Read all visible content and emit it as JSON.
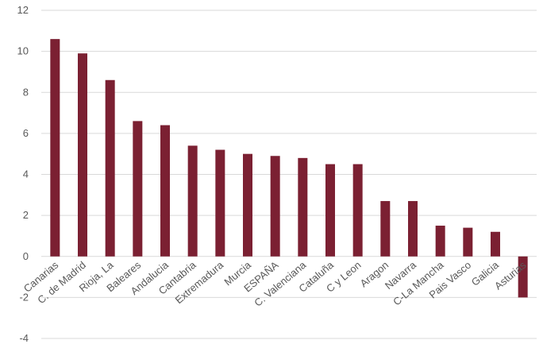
{
  "chart_data": {
    "type": "bar",
    "title": "",
    "xlabel": "",
    "ylabel": "",
    "ylim": [
      -4,
      12
    ],
    "yticks": [
      12,
      10,
      8,
      6,
      4,
      2,
      0,
      -2,
      -4
    ],
    "ytick_labels": [
      "12",
      "10",
      "8",
      "6",
      "4",
      "2",
      "0",
      "-2",
      "-4"
    ],
    "grid": true,
    "legend": "none",
    "bar_color": "#7b2032",
    "grid_color": "#d9d9d9",
    "label_color": "#595959",
    "categories": [
      "Canarias",
      "C. de Madrid",
      "Rioja, La",
      "Baleares",
      "Andalucia",
      "Cantabria",
      "Extremadura",
      "Murcia",
      "ESPAÑA",
      "C. Valenciana",
      "Cataluña",
      "C y Leon",
      "Aragon",
      "Navarra",
      "C-La Mancha",
      "Pais Vasco",
      "Galicia",
      "Asturias"
    ],
    "values": [
      10.6,
      9.9,
      8.6,
      6.6,
      6.4,
      5.4,
      5.2,
      5.0,
      4.9,
      4.8,
      4.5,
      4.5,
      2.7,
      2.7,
      1.5,
      1.4,
      1.2,
      -2.0
    ]
  }
}
